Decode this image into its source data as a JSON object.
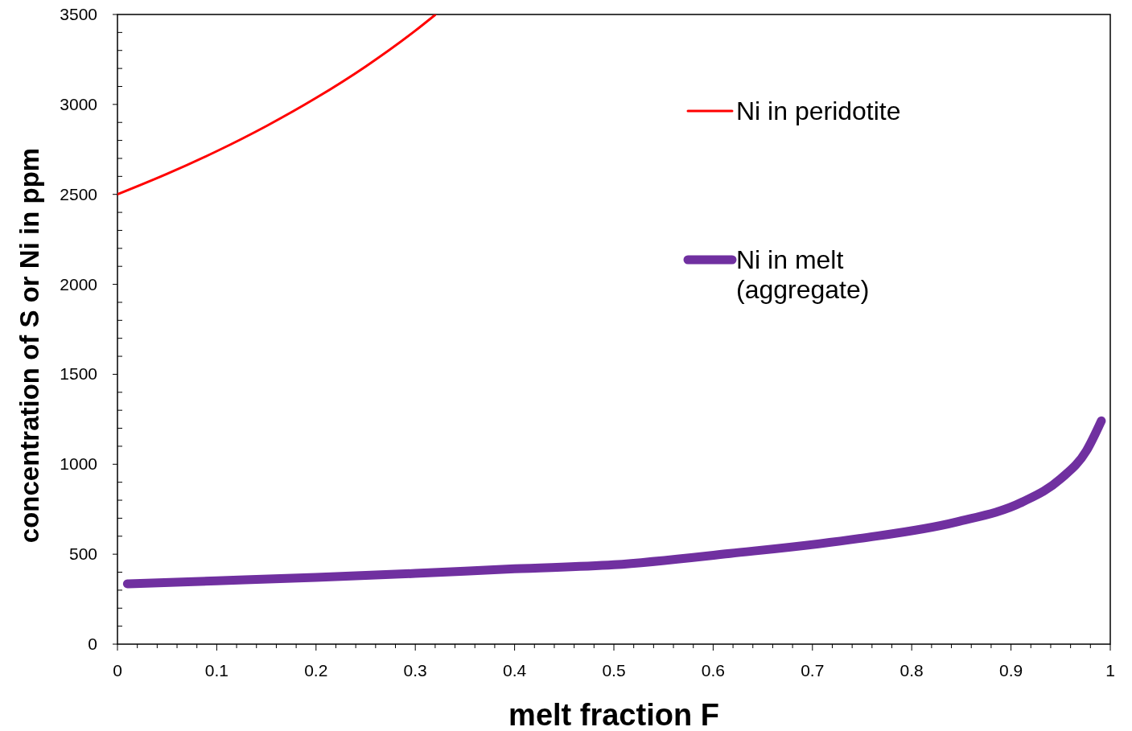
{
  "chart_data": {
    "type": "line",
    "xlabel": "melt fraction F",
    "ylabel": "concentration of S or Ni in ppm",
    "xlim": [
      0,
      1
    ],
    "ylim": [
      0,
      3500
    ],
    "xticks": [
      0,
      0.1,
      0.2,
      0.3,
      0.4,
      0.5,
      0.6,
      0.7,
      0.8,
      0.9,
      1
    ],
    "yticks": [
      0,
      500,
      1000,
      1500,
      2000,
      2500,
      3000,
      3500
    ],
    "grid": false,
    "legend": "top right",
    "line_style": "solid",
    "series": [
      {
        "name": "Ni in peridotite",
        "color": "#ff0000",
        "x": [
          0,
          0.05,
          0.1,
          0.15,
          0.2,
          0.25,
          0.3,
          0.32
        ],
        "values": [
          2500,
          2614,
          2740,
          2880,
          3036,
          3211,
          3410,
          3498
        ]
      },
      {
        "name": "Ni in melt (aggregate)",
        "color": "#7030a0",
        "x": [
          0.01,
          0.1,
          0.2,
          0.3,
          0.4,
          0.5,
          0.617,
          0.747,
          0.845,
          0.911,
          0.95,
          0.976,
          0.991
        ],
        "values": [
          335,
          352,
          371,
          393,
          419,
          441,
          504,
          587,
          679,
          789,
          919,
          1075,
          1241
        ]
      }
    ]
  }
}
